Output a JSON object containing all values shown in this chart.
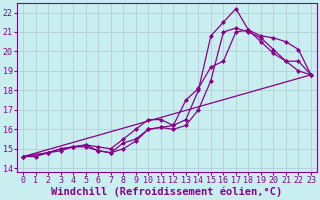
{
  "background_color": "#c8eef0",
  "grid_color": "#b0c8d0",
  "line_color": "#880088",
  "xlim": [
    -0.5,
    23.5
  ],
  "ylim": [
    13.8,
    22.5
  ],
  "xticks": [
    0,
    1,
    2,
    3,
    4,
    5,
    6,
    7,
    8,
    9,
    10,
    11,
    12,
    13,
    14,
    15,
    16,
    17,
    18,
    19,
    20,
    21,
    22,
    23
  ],
  "yticks": [
    14,
    15,
    16,
    17,
    18,
    19,
    20,
    21,
    22
  ],
  "xlabel": "Windchill (Refroidissement éolien,°C)",
  "xlabel_fontsize": 7.5,
  "tick_fontsize": 6,
  "lines": [
    {
      "x": [
        0,
        1,
        2,
        3,
        4,
        5,
        6,
        7,
        8,
        9,
        10,
        11,
        12,
        13,
        14,
        15,
        16,
        17,
        18,
        19,
        20,
        21,
        22,
        23
      ],
      "y": [
        14.6,
        14.6,
        14.8,
        14.9,
        15.1,
        15.2,
        14.9,
        14.8,
        15.3,
        15.5,
        16.0,
        16.1,
        16.2,
        16.5,
        18.0,
        20.8,
        21.5,
        22.2,
        21.1,
        20.5,
        19.9,
        19.5,
        19.5,
        18.8
      ],
      "marker": "D",
      "markersize": 2.0,
      "linewidth": 0.9,
      "has_markers": true
    },
    {
      "x": [
        0,
        2,
        3,
        4,
        5,
        6,
        7,
        8,
        9,
        10,
        11,
        12,
        13,
        14,
        15,
        16,
        17,
        18,
        19,
        20,
        21,
        22,
        23
      ],
      "y": [
        14.6,
        14.8,
        15.0,
        15.1,
        15.1,
        14.9,
        14.8,
        15.0,
        15.4,
        16.0,
        16.1,
        16.0,
        16.2,
        17.0,
        18.5,
        21.0,
        21.2,
        21.0,
        20.7,
        20.1,
        19.5,
        19.0,
        18.8
      ],
      "marker": "D",
      "markersize": 2.0,
      "linewidth": 0.9,
      "has_markers": true
    },
    {
      "x": [
        0,
        2,
        3,
        4,
        5,
        6,
        7,
        8,
        9,
        10,
        11,
        12,
        13,
        14,
        15,
        16,
        17,
        18,
        19,
        20,
        21,
        22,
        23
      ],
      "y": [
        14.6,
        14.8,
        15.0,
        15.1,
        15.2,
        15.1,
        15.0,
        15.5,
        16.0,
        16.5,
        16.5,
        16.2,
        17.5,
        18.1,
        19.2,
        19.5,
        21.0,
        21.1,
        20.8,
        20.7,
        20.5,
        20.1,
        18.8
      ],
      "marker": "D",
      "markersize": 2.0,
      "linewidth": 0.9,
      "has_markers": true
    },
    {
      "x": [
        0,
        23
      ],
      "y": [
        14.6,
        18.8
      ],
      "marker": null,
      "markersize": 0,
      "linewidth": 0.9,
      "has_markers": false
    }
  ]
}
